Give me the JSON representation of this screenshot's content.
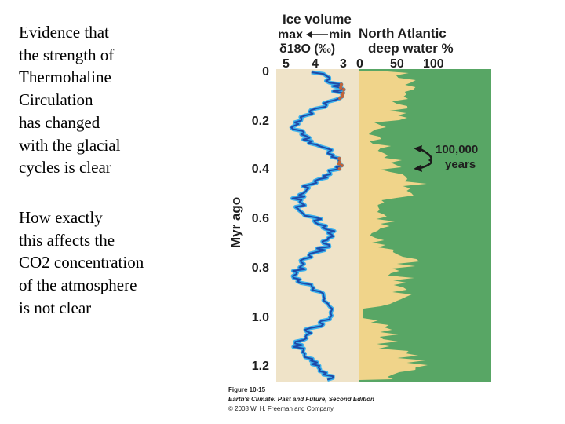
{
  "text_blocks": [
    [
      "Evidence that",
      "the strength of",
      "Thermohaline",
      "Circulation",
      "has changed",
      "with the glacial",
      "cycles is clear"
    ],
    [
      "How exactly",
      "this affects the",
      "CO2 concentration",
      "of the atmosphere",
      "is not clear"
    ]
  ],
  "figure": {
    "ice_volume_title": "Ice volume",
    "ice_max": "max",
    "ice_min": "min",
    "delta_label": "δ18O (‰)",
    "delta_ticks": [
      "5",
      "4",
      "3"
    ],
    "na_title_line1": "North Atlantic",
    "na_title_line2": "deep water %",
    "na_ticks": [
      "0",
      "50",
      "100"
    ],
    "y_axis_label": "Myr ago",
    "y_ticks": [
      "0",
      "0.2",
      "0.4",
      "0.6",
      "0.8",
      "1.0",
      "1.2"
    ],
    "annotation_line1": "100,000",
    "annotation_line2": "years",
    "caption_line1": "Figure 10-15",
    "caption_line2": "Earth's Climate: Past and Future, Second Edition",
    "caption_line3": "© 2008 W. H. Freeman and Company",
    "colors": {
      "delta_panel_bg": "#efe3c8",
      "na_yellow": "#f0d48a",
      "na_green": "#58a665",
      "curve_dark": "#1f4aa8",
      "curve_light": "#3ab0ec",
      "curve_marker": "#c0643a"
    }
  }
}
